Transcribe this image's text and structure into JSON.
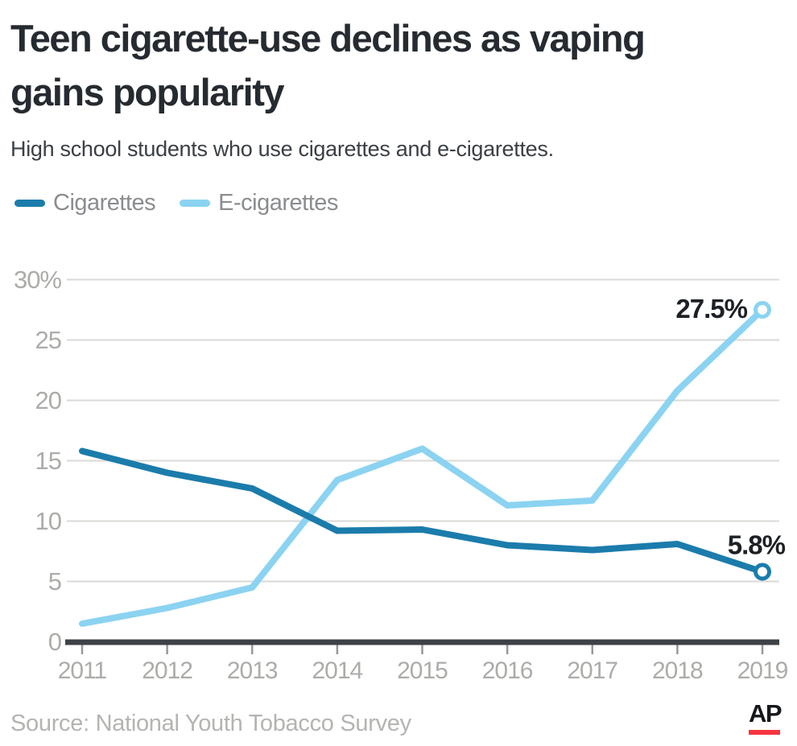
{
  "header": {
    "title_lines": [
      "Teen cigarette-use declines as vaping",
      "gains popularity"
    ],
    "subtitle": "High school students who use cigarettes and e-cigarettes."
  },
  "footer": {
    "source": "Source: National Youth Tobacco Survey",
    "logo_text": "AP",
    "logo_underline_color": "#f6353f"
  },
  "colors": {
    "title_text": "#262b31",
    "subtitle_text": "#3b4046",
    "legend_text": "#8a8d90",
    "axis_text": "#abada8",
    "grid": "#d9dad5",
    "baseline": "#3e4247",
    "tick": "#97999b",
    "point_label_text": "#1d2125",
    "marker_fill": "#ffffff"
  },
  "chart_data": {
    "type": "line",
    "title": "Teen cigarette-use declines as vaping gains popularity",
    "xlabel": "",
    "ylabel": "",
    "x": [
      "2011",
      "2012",
      "2013",
      "2014",
      "2015",
      "2016",
      "2017",
      "2018",
      "2019"
    ],
    "series": [
      {
        "name": "Cigarettes",
        "color": "#1b7cab",
        "values": [
          15.8,
          14.0,
          12.7,
          9.2,
          9.3,
          8.0,
          7.6,
          8.1,
          5.8
        ],
        "end_label": "5.8%"
      },
      {
        "name": "E-cigarettes",
        "color": "#8bd3f1",
        "values": [
          1.5,
          2.8,
          4.5,
          13.4,
          16.0,
          11.3,
          11.7,
          20.8,
          27.5
        ],
        "end_label": "27.5%"
      }
    ],
    "ylim": [
      0,
      30
    ],
    "yticks": [
      0,
      5,
      10,
      15,
      20,
      25,
      30
    ],
    "ytick_labels": [
      "0",
      "5",
      "10",
      "15",
      "20",
      "25",
      "30%"
    ],
    "grid": true,
    "legend_position": "top-left"
  }
}
